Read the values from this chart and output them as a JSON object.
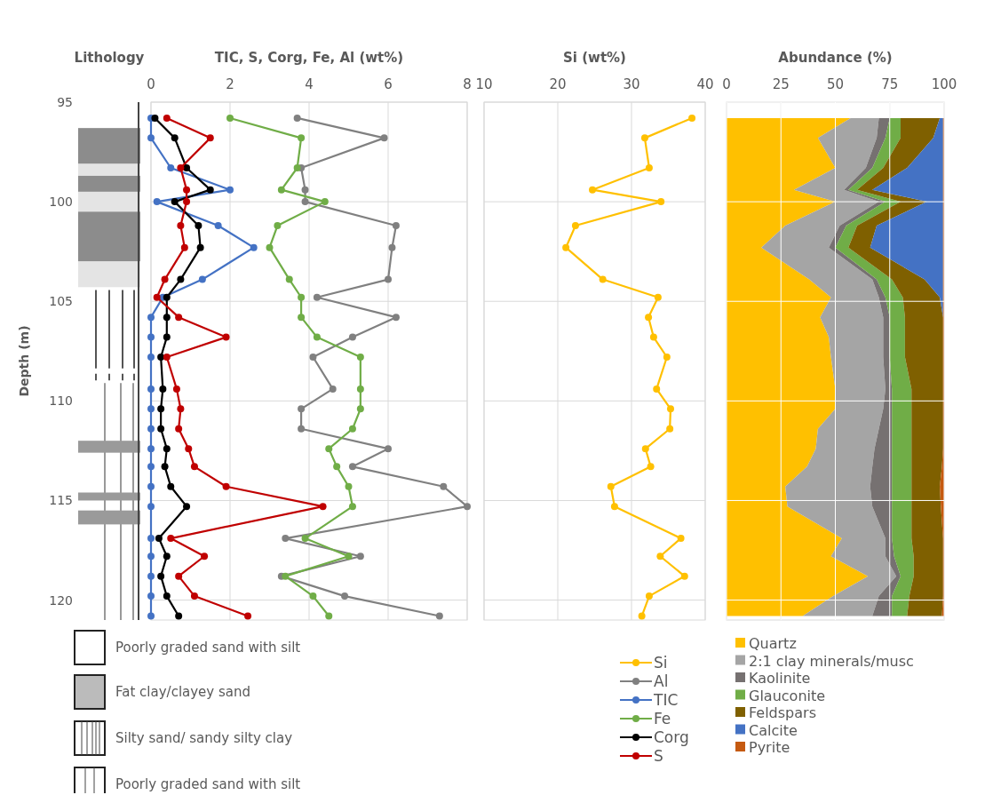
{
  "chart_data": [
    {
      "type": "other",
      "title": "Lithology",
      "annotations": [
        "Poorly graded sand with silt",
        "Fat clay/clayey sand",
        "Silty sand/ sandy silty clay",
        "Poorly graded sand with silt"
      ]
    },
    {
      "type": "line",
      "title": "TIC, S, Corg, Fe, Al  (wt%)",
      "ylabel": "Depth (m)",
      "orientation": "horizontal",
      "x": [
        95.8,
        96.8,
        98.3,
        99.4,
        100.0,
        101.2,
        102.3,
        103.9,
        104.8,
        105.8,
        106.8,
        107.8,
        109.4,
        110.4,
        111.4,
        112.4,
        113.3,
        114.3,
        115.3,
        116.9,
        117.8,
        118.8,
        119.8,
        120.8
      ],
      "series": [
        {
          "name": "Al",
          "color": "#808080",
          "values": [
            3.7,
            5.9,
            3.8,
            3.9,
            3.9,
            6.2,
            6.1,
            6.0,
            4.2,
            6.2,
            5.1,
            4.1,
            4.6,
            3.8,
            3.8,
            6.0,
            5.1,
            7.4,
            8.0,
            3.4,
            5.3,
            3.3,
            4.9,
            7.3
          ]
        },
        {
          "name": "TIC",
          "color": "#4472c4",
          "values": [
            0,
            0,
            0.5,
            2.0,
            0.15,
            1.7,
            2.6,
            1.3,
            0.3,
            0,
            0,
            0,
            0,
            0,
            0,
            0,
            0,
            0,
            0,
            0,
            0,
            0,
            0,
            0
          ]
        },
        {
          "name": "Fe",
          "color": "#70ad47",
          "values": [
            2.0,
            3.8,
            3.7,
            3.3,
            4.4,
            3.2,
            3.0,
            3.5,
            3.8,
            3.8,
            4.2,
            5.3,
            5.3,
            5.3,
            5.1,
            4.5,
            4.7,
            5.0,
            5.1,
            3.9,
            5.0,
            3.4,
            4.1,
            4.5
          ]
        },
        {
          "name": "Corg",
          "color": "#000000",
          "values": [
            0.1,
            0.6,
            0.9,
            1.5,
            0.6,
            1.2,
            1.25,
            0.75,
            0.4,
            0.4,
            0.4,
            0.25,
            0.3,
            0.25,
            0.25,
            0.4,
            0.35,
            0.5,
            0.9,
            0.2,
            0.4,
            0.25,
            0.4,
            0.7
          ]
        },
        {
          "name": "S",
          "color": "#c00000",
          "values": [
            0.4,
            1.5,
            0.75,
            0.9,
            0.9,
            0.75,
            0.85,
            0.35,
            0.15,
            0.7,
            1.9,
            0.4,
            0.65,
            0.75,
            0.7,
            0.95,
            1.1,
            1.9,
            4.35,
            0.5,
            1.35,
            0.7,
            1.1,
            2.45
          ]
        }
      ],
      "xlim": [
        0,
        8
      ],
      "xticks": [
        0,
        2,
        4,
        6,
        8
      ],
      "ylim": [
        121,
        95
      ],
      "yticks": [
        95,
        100,
        105,
        110,
        115,
        120
      ],
      "grid": true,
      "legend": "bottom right",
      "marker": "circle"
    },
    {
      "type": "line",
      "title": "Si (wt%)",
      "orientation": "horizontal",
      "x": [
        95.8,
        96.8,
        98.3,
        99.4,
        100.0,
        101.2,
        102.3,
        103.9,
        104.8,
        105.8,
        106.8,
        107.8,
        109.4,
        110.4,
        111.4,
        112.4,
        113.3,
        114.3,
        115.3,
        116.9,
        117.8,
        118.8,
        119.8,
        120.8
      ],
      "series": [
        {
          "name": "Si",
          "color": "#ffc000",
          "values": [
            38.2,
            31.8,
            32.4,
            24.7,
            34.0,
            22.4,
            21.1,
            26.1,
            33.6,
            32.3,
            33.0,
            34.8,
            33.4,
            35.3,
            35.2,
            31.9,
            32.6,
            27.2,
            27.7,
            36.7,
            33.9,
            37.2,
            32.4,
            31.4
          ]
        }
      ],
      "xlim": [
        10,
        40
      ],
      "xticks": [
        10,
        20,
        30,
        40
      ],
      "ylim": [
        121,
        95
      ],
      "yticks": [
        95,
        100,
        105,
        110,
        115,
        120
      ],
      "tick_labels": "x",
      "grid": true,
      "legend": "bottom",
      "marker": "circle"
    },
    {
      "type": "area",
      "title": "Abundance (%)",
      "orientation": "horizontal",
      "stacked": true,
      "x": [
        95.8,
        96.8,
        98.3,
        99.4,
        100.0,
        101.2,
        102.3,
        103.9,
        104.8,
        105.8,
        106.8,
        107.8,
        109.4,
        110.4,
        111.4,
        112.4,
        113.3,
        114.3,
        115.3,
        116.9,
        117.8,
        118.8,
        119.8,
        120.8
      ],
      "series": [
        {
          "name": "Quartz",
          "color": "#ffc000",
          "values": [
            57,
            42,
            50,
            31,
            50,
            27,
            16,
            38,
            48,
            43,
            47,
            48,
            50,
            50,
            42,
            41,
            37,
            27,
            28,
            53,
            48,
            65,
            49,
            35
          ]
        },
        {
          "name": "2:1 clay minerals/musc",
          "color": "#a5a5a5",
          "values": [
            13,
            27,
            14,
            23,
            20,
            25,
            31,
            29,
            22,
            29,
            25,
            24,
            23,
            22,
            28,
            27,
            30,
            39,
            39,
            20,
            25,
            13,
            21,
            32
          ]
        },
        {
          "name": "Kaolinite",
          "color": "#767171",
          "values": [
            5,
            4,
            3,
            2,
            3,
            3,
            3,
            2,
            3,
            3,
            3,
            3,
            3,
            4,
            6,
            8,
            9,
            10,
            9,
            3,
            4,
            2,
            6,
            9
          ]
        },
        {
          "name": "Glauconite",
          "color": "#70ad47",
          "values": [
            5,
            7,
            5,
            4,
            7,
            5,
            6,
            7,
            8,
            7,
            7,
            7,
            9,
            9,
            9,
            9,
            9,
            9,
            9,
            9,
            9,
            6,
            8,
            7
          ]
        },
        {
          "name": "Feldspars",
          "color": "#7f6000",
          "values": [
            18,
            15,
            11,
            7,
            12,
            9,
            10,
            15,
            17,
            17.5,
            17.5,
            17.5,
            14.5,
            14.5,
            14.5,
            14.5,
            14,
            13,
            13.5,
            14.5,
            13.5,
            13.5,
            15.5,
            16
          ]
        },
        {
          "name": "Calcite",
          "color": "#4472c4",
          "values": [
            1.5,
            4.5,
            16.5,
            32.5,
            7.5,
            30.5,
            33.5,
            8.5,
            1.5,
            0,
            0,
            0,
            0,
            0,
            0,
            0,
            0,
            0,
            0,
            0,
            0,
            0,
            0,
            0
          ]
        },
        {
          "name": "Pyrite",
          "color": "#c55a11",
          "values": [
            0.5,
            0.5,
            0.5,
            0.5,
            0.5,
            0.5,
            0.5,
            0.5,
            0.5,
            0.5,
            0.5,
            0.5,
            0.5,
            0.5,
            0.5,
            0.5,
            1,
            2,
            1.5,
            0.5,
            0.5,
            0.5,
            0.5,
            1
          ]
        }
      ],
      "xlim": [
        0,
        100
      ],
      "xticks": [
        0,
        25,
        50,
        75,
        100
      ],
      "ylim": [
        121,
        95
      ],
      "yticks": [
        95,
        100,
        105,
        110,
        115,
        120
      ],
      "tick_labels": "x",
      "grid": true,
      "legend": "bottom"
    }
  ]
}
